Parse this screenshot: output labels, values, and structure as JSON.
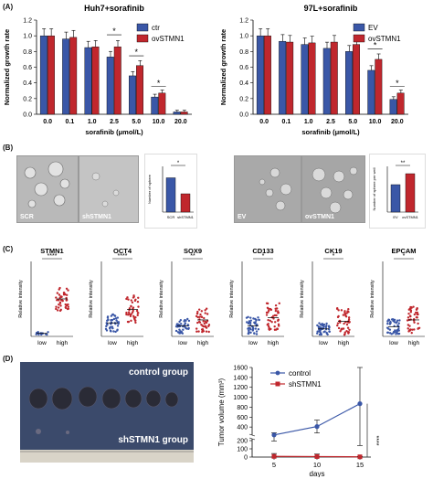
{
  "panels": {
    "a": "(A)",
    "b": "(B)",
    "c": "(C)",
    "d": "(D)"
  },
  "colors": {
    "ctrl": "#3a57a7",
    "treat": "#c0272d"
  },
  "chart_data": [
    {
      "type": "bar",
      "title": "Huh7+sorafinib",
      "xlabel": "sorafinib (μmol/L)",
      "ylabel": "Normalized growth rate",
      "categories": [
        "0.0",
        "0.1",
        "1.0",
        "2.5",
        "5.0",
        "10.0",
        "20.0"
      ],
      "series": [
        {
          "name": "ctr",
          "values": [
            1.0,
            0.96,
            0.85,
            0.73,
            0.49,
            0.22,
            0.03
          ]
        },
        {
          "name": "ovSTMN1",
          "values": [
            1.0,
            0.98,
            0.86,
            0.86,
            0.62,
            0.27,
            0.03
          ]
        }
      ],
      "ylim": [
        0,
        1.2
      ],
      "yticks": [
        "0.0",
        "0.2",
        "0.4",
        "0.6",
        "0.8",
        "1.0",
        "1.2"
      ],
      "sig": [
        {
          "index": 3,
          "label": "*"
        },
        {
          "index": 4,
          "label": "*"
        },
        {
          "index": 5,
          "label": "*"
        }
      ]
    },
    {
      "type": "bar",
      "title": "97L+sorafinib",
      "xlabel": "sorafinib (μmol/L)",
      "ylabel": "Normalized growth rate",
      "categories": [
        "0.0",
        "0.1",
        "1.0",
        "2.5",
        "5.0",
        "10.0",
        "20.0"
      ],
      "series": [
        {
          "name": "EV",
          "values": [
            1.0,
            0.93,
            0.89,
            0.84,
            0.8,
            0.56,
            0.19
          ]
        },
        {
          "name": "ovSTMN1",
          "values": [
            1.0,
            0.92,
            0.91,
            0.92,
            0.89,
            0.7,
            0.27
          ]
        }
      ],
      "ylim": [
        0,
        1.2
      ],
      "yticks": [
        "0.0",
        "0.2",
        "0.4",
        "0.6",
        "0.8",
        "1.0",
        "1.2"
      ],
      "sig": [
        {
          "index": 5,
          "label": "*"
        },
        {
          "index": 6,
          "label": "*"
        }
      ]
    },
    {
      "type": "bar",
      "ylabel": "Number of sphere",
      "categories": [
        "SCR",
        "shSTMN1"
      ],
      "values": [
        15,
        8
      ],
      "ylim": [
        0,
        20
      ],
      "sig": "*"
    },
    {
      "type": "bar",
      "ylabel": "Number of sphere per well",
      "categories": [
        "EV",
        "ovSTMN1"
      ],
      "values": [
        15,
        21
      ],
      "ylim": [
        0,
        25
      ],
      "sig": "**"
    },
    {
      "type": "scatter",
      "title": "STMN1",
      "ylabel": "Relative intensity",
      "categories": [
        "low",
        "high"
      ],
      "sig": "****",
      "means": [
        0.04,
        0.5
      ],
      "spread": [
        0.02,
        0.16
      ]
    },
    {
      "type": "scatter",
      "title": "OCT4",
      "ylabel": "Relative intensity",
      "categories": [
        "low",
        "high"
      ],
      "sig": "****",
      "means": [
        0.18,
        0.36
      ],
      "spread": [
        0.12,
        0.2
      ]
    },
    {
      "type": "scatter",
      "title": "SOX9",
      "ylabel": "Relative intensity",
      "categories": [
        "low",
        "high"
      ],
      "sig": "**",
      "means": [
        0.14,
        0.22
      ],
      "spread": [
        0.1,
        0.16
      ]
    },
    {
      "type": "scatter",
      "title": "CD133",
      "ylabel": "Relative intensity",
      "categories": [
        "low",
        "high"
      ],
      "sig": "*",
      "means": [
        0.14,
        0.25
      ],
      "spread": [
        0.12,
        0.2
      ]
    },
    {
      "type": "scatter",
      "title": "CK19",
      "ylabel": "Relative intensity",
      "categories": [
        "low",
        "high"
      ],
      "sig": "*",
      "means": [
        0.1,
        0.2
      ],
      "spread": [
        0.08,
        0.18
      ]
    },
    {
      "type": "scatter",
      "title": "EPCAM",
      "ylabel": "Relative intensity",
      "categories": [
        "low",
        "high"
      ],
      "sig": "*",
      "means": [
        0.13,
        0.22
      ],
      "spread": [
        0.1,
        0.18
      ]
    },
    {
      "type": "line",
      "xlabel": "days",
      "ylabel": "Tumor volume (mm³)",
      "x": [
        5,
        10,
        15
      ],
      "xticks": [
        "5",
        "10",
        "15"
      ],
      "yticks": [
        "0",
        "50",
        "100",
        "150",
        "200",
        "400",
        "600",
        "800",
        "1000",
        "1200",
        "1400",
        "1600"
      ],
      "series": [
        {
          "name": "control",
          "values": [
            240,
            410,
            870
          ],
          "err": [
            45,
            130,
            730
          ]
        },
        {
          "name": "shSTMN1",
          "values": [
            8,
            6,
            3
          ],
          "err": [
            35,
            30,
            4
          ]
        }
      ],
      "sig": "****"
    }
  ],
  "micro_labels": {
    "scr": "SCR",
    "sh": "shSTMN1",
    "ev": "EV",
    "ov": "ovSTMN1"
  },
  "photo": {
    "top": "control group",
    "bottom": "shSTMN1 group"
  }
}
